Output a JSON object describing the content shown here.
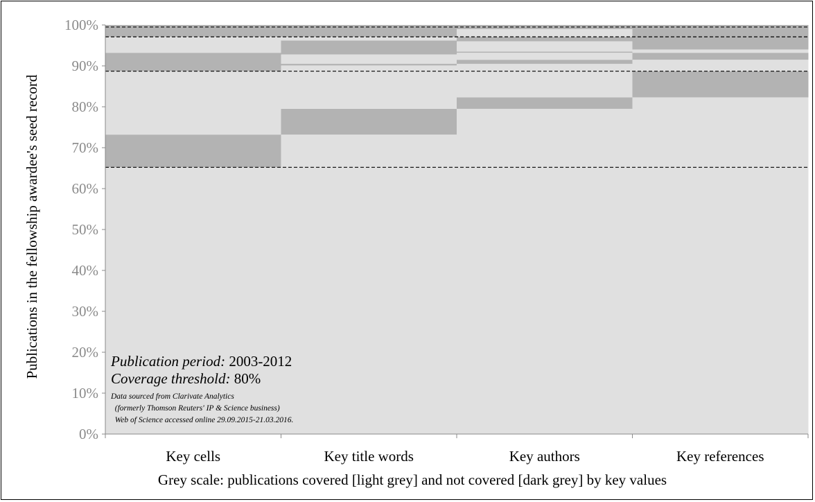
{
  "chart_data": {
    "type": "bar",
    "ylabel": "Publications in the fellowship awardee's seed record",
    "ylim": [
      0,
      100
    ],
    "yticks": [
      "0%",
      "10%",
      "20%",
      "30%",
      "40%",
      "50%",
      "60%",
      "70%",
      "80%",
      "90%",
      "100%"
    ],
    "categories": [
      "Key cells",
      "Key title words",
      "Key authors",
      "Key references"
    ],
    "segments": [
      [
        [
          0,
          65.2,
          "covered"
        ],
        [
          65.2,
          73.2,
          "not covered"
        ],
        [
          73.2,
          88.7,
          "covered"
        ],
        [
          88.7,
          93.2,
          "not covered"
        ],
        [
          93.2,
          97.1,
          "covered"
        ],
        [
          97.1,
          100,
          "not covered"
        ]
      ],
      [
        [
          0,
          73.2,
          "covered"
        ],
        [
          73.2,
          79.5,
          "not covered"
        ],
        [
          79.5,
          90.1,
          "covered"
        ],
        [
          90.1,
          90.5,
          "not covered"
        ],
        [
          90.5,
          92.8,
          "covered"
        ],
        [
          92.8,
          96.2,
          "not covered"
        ],
        [
          96.2,
          97.1,
          "covered"
        ],
        [
          97.1,
          100,
          "not covered"
        ]
      ],
      [
        [
          0,
          79.5,
          "covered"
        ],
        [
          79.5,
          82.3,
          "not covered"
        ],
        [
          82.3,
          90.5,
          "covered"
        ],
        [
          90.5,
          91.5,
          "not covered"
        ],
        [
          91.5,
          93.2,
          "covered"
        ],
        [
          93.2,
          93.5,
          "not covered"
        ],
        [
          93.5,
          96.0,
          "covered"
        ],
        [
          96.0,
          97.1,
          "not covered"
        ],
        [
          97.1,
          99.0,
          "covered"
        ],
        [
          99.0,
          100,
          "not covered"
        ]
      ],
      [
        [
          0,
          82.3,
          "covered"
        ],
        [
          82.3,
          88.7,
          "not covered"
        ],
        [
          88.7,
          91.5,
          "covered"
        ],
        [
          91.5,
          93.2,
          "not covered"
        ],
        [
          93.2,
          94.0,
          "covered"
        ],
        [
          94.0,
          100,
          "not covered"
        ]
      ]
    ],
    "dashed_lines": [
      65.2,
      88.7,
      97.1,
      99.5
    ],
    "legend": "Grey scale: publications covered [light grey] and not covered [dark grey] by key values",
    "colors": {
      "covered": "#e0e0e0",
      "not_covered": "#b3b3b3",
      "axis": "#8a8a8a"
    },
    "annotation": {
      "period_label": "Publication period:",
      "period_value": " 2003-2012",
      "threshold_label": "Coverage threshold:",
      "threshold_value": " 80%",
      "source_lines": [
        "Data sourced from Clarivate Analytics",
        "  (formerly Thomson Reuters' IP & Science business)",
        "  Web of Science accessed online 29.09.2015-21.03.2016."
      ]
    }
  }
}
